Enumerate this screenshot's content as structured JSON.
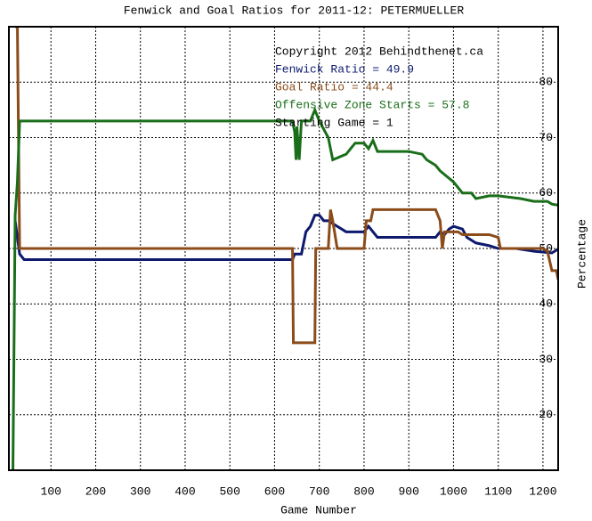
{
  "chart_data": {
    "type": "line",
    "title": "Fenwick and Goal Ratios for 2011-12: PETERMUELLER",
    "x_label": "Game Number",
    "y_label": "Percentage",
    "annotations": [
      {
        "text": "Copyright 2012 Behindthenet.ca",
        "color": "#000000"
      },
      {
        "text": "Starting Game = 1",
        "color": "#000000"
      }
    ],
    "xlim": [
      6,
      1234
    ],
    "ylim": [
      10,
      90
    ],
    "xticks": [
      100,
      200,
      300,
      400,
      500,
      600,
      700,
      800,
      900,
      1000,
      1100,
      1200
    ],
    "yticks": [
      20,
      30,
      40,
      50,
      60,
      70,
      80
    ],
    "grid": true,
    "series": [
      {
        "name": "Fenwick Ratio = 49.9",
        "color": "#0d1a6e",
        "x": [
          20,
          30,
          40,
          640,
          645,
          660,
          670,
          680,
          690,
          700,
          710,
          720,
          740,
          760,
          800,
          810,
          820,
          830,
          900,
          960,
          970,
          980,
          990,
          1000,
          1020,
          1030,
          1050,
          1080,
          1100,
          1140,
          1180,
          1220,
          1234
        ],
        "values": [
          55,
          49,
          48,
          48,
          49,
          49,
          53,
          54,
          56,
          56,
          55,
          55,
          54,
          53,
          53,
          54,
          53,
          52,
          52,
          52,
          53,
          52.5,
          53.5,
          54,
          53.5,
          52,
          51,
          50.5,
          50,
          50,
          49.5,
          49.2,
          49.9
        ]
      },
      {
        "name": "Goal Ratio = 44.4",
        "color": "#8b4c1a",
        "x": [
          20,
          25,
          30,
          640,
          642,
          690,
          692,
          720,
          725,
          730,
          740,
          800,
          805,
          815,
          820,
          960,
          970,
          975,
          980,
          1010,
          1020,
          1080,
          1100,
          1105,
          1200,
          1210,
          1220,
          1230,
          1234
        ],
        "values": [
          90,
          90,
          50,
          50,
          33,
          33,
          50,
          50,
          57,
          55,
          50,
          50,
          55,
          55,
          57,
          57,
          55,
          50,
          53,
          53,
          52.5,
          52.5,
          52,
          50,
          50,
          49.5,
          46,
          46,
          44.4
        ]
      },
      {
        "name": "Offensive Zone Starts = 57.8",
        "color": "#1a6e1a",
        "x": [
          15,
          20,
          25,
          30,
          640,
          645,
          648,
          650,
          655,
          660,
          680,
          690,
          700,
          720,
          730,
          760,
          770,
          780,
          800,
          810,
          820,
          830,
          900,
          930,
          940,
          960,
          970,
          1000,
          1020,
          1040,
          1050,
          1080,
          1100,
          1150,
          1180,
          1210,
          1220,
          1234
        ],
        "values": [
          10,
          56,
          62,
          73,
          73,
          71,
          66,
          72,
          66,
          73,
          73,
          75,
          73,
          70,
          66,
          67,
          68,
          69,
          69,
          68,
          69.5,
          67.5,
          67.5,
          67,
          66,
          65,
          64,
          62,
          60,
          60,
          59,
          59.5,
          59.5,
          59,
          58.5,
          58.5,
          58,
          57.8
        ]
      }
    ]
  }
}
